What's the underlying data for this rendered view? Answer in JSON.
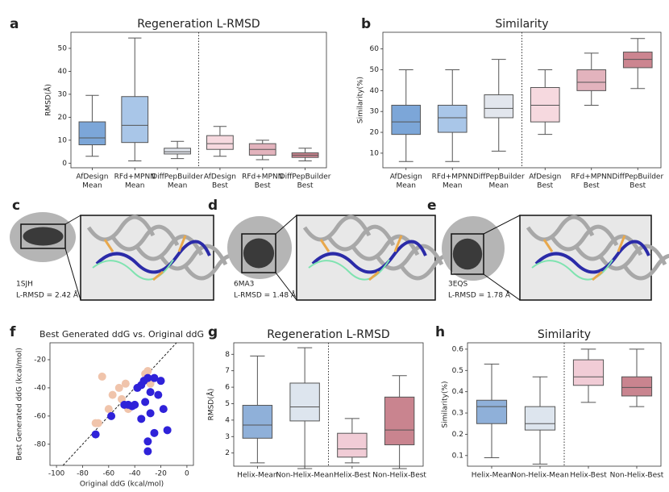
{
  "chart_data": [
    {
      "type": "box",
      "panel": "a",
      "title": "Regeneration L-RMSD",
      "ylabel": "RMSD(Å)",
      "categories": [
        [
          "AfDesign",
          "Mean"
        ],
        [
          "RFd+MPNN",
          "Mean"
        ],
        [
          "DiffPepBuilder",
          "Mean"
        ],
        [
          "AfDesign",
          "Best"
        ],
        [
          "RFd+MPNN",
          "Best"
        ],
        [
          "DiffPepBuilder",
          "Best"
        ]
      ],
      "colors": [
        "#7ca6d8",
        "#a9c6e8",
        "#e2e6ed",
        "#f6d9df",
        "#e3b3bd",
        "#cc8590"
      ],
      "stats": {
        "min": [
          3,
          1,
          2,
          3,
          1.5,
          1
        ],
        "q1": [
          8,
          9,
          4,
          6,
          3.5,
          2.5
        ],
        "median": [
          11,
          16.5,
          5,
          8.5,
          6,
          3.5
        ],
        "q3": [
          18,
          29,
          6.5,
          12,
          8.5,
          4.5
        ],
        "max": [
          29.5,
          54.5,
          9.5,
          16,
          10,
          6.5
        ]
      },
      "ylim": [
        -2,
        57
      ],
      "yticks": [
        0,
        10,
        20,
        30,
        40,
        50
      ]
    },
    {
      "type": "box",
      "panel": "b",
      "title": "Similarity",
      "ylabel": "Similarity(%)",
      "categories": [
        [
          "AfDesign",
          "Mean"
        ],
        [
          "RFd+MPNN",
          "Mean"
        ],
        [
          "DiffPepBuilder",
          "Mean"
        ],
        [
          "AfDesign",
          "Best"
        ],
        [
          "RFd+MPNN",
          "Best"
        ],
        [
          "DiffPepBuilder",
          "Best"
        ]
      ],
      "colors": [
        "#7ca6d8",
        "#a9c6e8",
        "#e2e6ed",
        "#f6d9df",
        "#e3b3bd",
        "#cc8590"
      ],
      "stats": {
        "min": [
          6,
          6,
          11,
          19,
          33,
          41
        ],
        "q1": [
          19,
          20,
          27,
          25,
          40,
          51
        ],
        "median": [
          25,
          27,
          31.5,
          33,
          44,
          55
        ],
        "q3": [
          33,
          33,
          38,
          41.5,
          50,
          58.5
        ],
        "max": [
          50,
          50,
          55,
          50,
          58,
          65
        ]
      },
      "ylim": [
        3,
        68
      ],
      "yticks": [
        10,
        20,
        30,
        40,
        50,
        60
      ]
    },
    {
      "type": "scatter",
      "panel": "f",
      "title": "Best Generated ddG vs. Original ddG",
      "xlabel": "Original ddG (kcal/mol)",
      "ylabel": "Best Generated ddG (kcal/mol)",
      "xlim": [
        -105,
        5
      ],
      "xticks": [
        -100,
        -80,
        -60,
        -40,
        -20,
        0
      ],
      "ylim": [
        -95,
        -8
      ],
      "yticks": [
        -80,
        -60,
        -40,
        -20
      ],
      "series": [
        {
          "color": "#f0c4ab",
          "x": [
            -70,
            -65,
            -60,
            -57,
            -52,
            -50,
            -47,
            -45,
            -32,
            -30,
            -28,
            -68
          ],
          "values": [
            -65,
            -32,
            -55,
            -45,
            -40,
            -48,
            -37,
            -55,
            -30,
            -28,
            -37,
            -65
          ]
        },
        {
          "color": "#2f22d9",
          "x": [
            -70,
            -58,
            -45,
            -42,
            -38,
            -35,
            -33,
            -30,
            -28,
            -25,
            -22,
            -20,
            -18,
            -15,
            -30,
            -30,
            -25,
            -35,
            -28,
            -32,
            -40,
            -48
          ],
          "values": [
            -73,
            -60,
            -52,
            -53,
            -40,
            -38,
            -35,
            -33,
            -43,
            -33,
            -45,
            -35,
            -55,
            -70,
            -78,
            -85,
            -72,
            -62,
            -58,
            -50,
            -52,
            -52
          ]
        }
      ]
    },
    {
      "type": "box",
      "panel": "g",
      "title": "Regeneration L-RMSD",
      "ylabel": "RMSD(Å)",
      "categories": [
        [
          "Helix-Mean"
        ],
        [
          "Non-Helix-Mean"
        ],
        [
          "Helix-Best"
        ],
        [
          "Non-Helix-Best"
        ]
      ],
      "colors": [
        "#8fb0d9",
        "#dde5ee",
        "#f1ccd6",
        "#c9848f"
      ],
      "stats": {
        "min": [
          1.4,
          1.05,
          1.4,
          1.05
        ],
        "q1": [
          2.9,
          3.95,
          1.75,
          2.5
        ],
        "median": [
          3.7,
          4.8,
          2.25,
          3.4
        ],
        "q3": [
          4.9,
          6.25,
          3.2,
          5.4
        ],
        "max": [
          7.9,
          8.4,
          4.1,
          6.7
        ]
      },
      "ylim": [
        1.2,
        8.7
      ],
      "yticks": [
        2,
        3,
        4,
        5,
        6,
        7,
        8
      ]
    },
    {
      "type": "box",
      "panel": "h",
      "title": "Similarity",
      "ylabel": "Similarity(%)",
      "categories": [
        [
          "Helix-Mean"
        ],
        [
          "Non-Helix-Mean"
        ],
        [
          "Helix-Best"
        ],
        [
          "Non-Helix-Best"
        ]
      ],
      "colors": [
        "#8fb0d9",
        "#dde5ee",
        "#f1ccd6",
        "#c9848f"
      ],
      "stats": {
        "min": [
          0.09,
          0.06,
          0.35,
          0.33
        ],
        "q1": [
          0.25,
          0.22,
          0.43,
          0.38
        ],
        "median": [
          0.33,
          0.25,
          0.47,
          0.42
        ],
        "q3": [
          0.36,
          0.33,
          0.55,
          0.47
        ],
        "max": [
          0.53,
          0.47,
          0.6,
          0.6
        ]
      },
      "ylim": [
        0.05,
        0.63
      ],
      "yticks": [
        0.1,
        0.2,
        0.3,
        0.4,
        0.5,
        0.6
      ]
    }
  ],
  "structures": [
    {
      "panel": "c",
      "pdb": "1SJH",
      "rmsd": "L-RMSD = 2.42 Å"
    },
    {
      "panel": "d",
      "pdb": "6MA3",
      "rmsd": "L-RMSD = 1.48 Å"
    },
    {
      "panel": "e",
      "pdb": "3EQS",
      "rmsd": "L-RMSD = 1.78 Å"
    }
  ]
}
